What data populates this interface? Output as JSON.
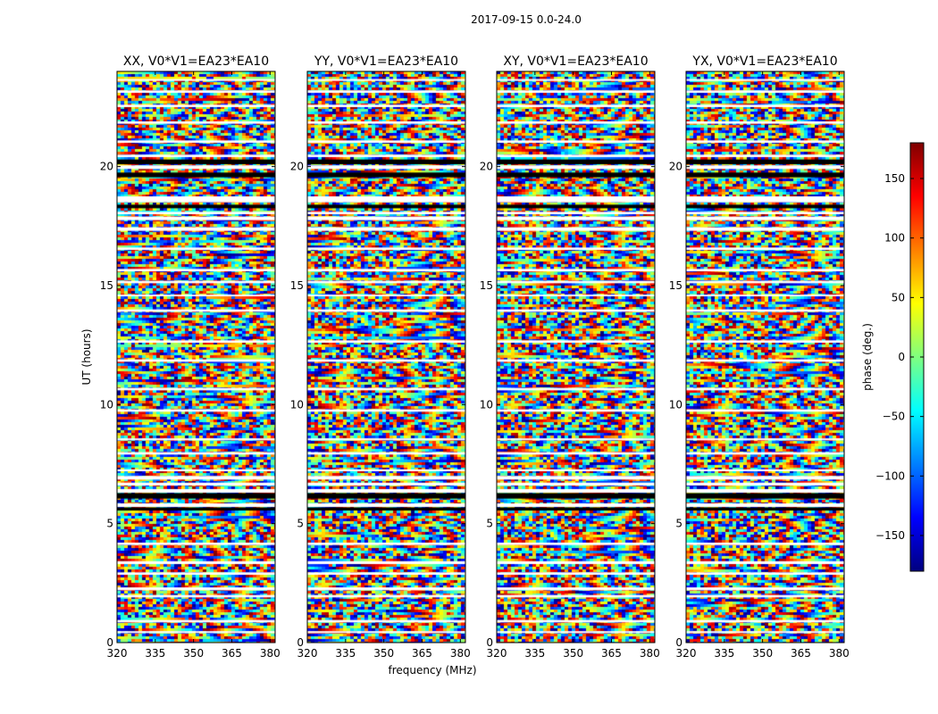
{
  "chart_data": {
    "type": "heatmap",
    "suptitle": "2017-09-15 0.0-24.0",
    "xlabel": "frequency (MHz)",
    "ylabel": "UT (hours)",
    "xlim": [
      320,
      382
    ],
    "ylim": [
      0,
      24
    ],
    "xticks": [
      320,
      335,
      350,
      365,
      380
    ],
    "yticks": [
      0,
      5,
      10,
      15,
      20
    ],
    "panels": [
      {
        "title": "XX, V0*V1=EA23*EA10"
      },
      {
        "title": "YY, V0*V1=EA23*EA10"
      },
      {
        "title": "XY, V0*V1=EA23*EA10"
      },
      {
        "title": "YX, V0*V1=EA23*EA10"
      }
    ],
    "colorbar": {
      "label": "phase (deg.)",
      "range": [
        -180,
        180
      ],
      "ticks": [
        150,
        100,
        50,
        0,
        -50,
        -100,
        -150
      ],
      "tick_labels": [
        "150",
        "100",
        "50",
        "0",
        "−50",
        "−100",
        "−150"
      ],
      "colormap": "jet"
    },
    "colors": {
      "jet": [
        "#00007f",
        "#0000ff",
        "#007fff",
        "#00ffff",
        "#7fff7f",
        "#ffff00",
        "#ff7f00",
        "#ff0000",
        "#7f0000"
      ],
      "flag": "#ffffff",
      "dark_band": "#000000"
    },
    "flagged_bands_hours": [
      [
        0.4,
        0.48
      ],
      [
        0.85,
        0.95
      ],
      [
        1.9,
        2.0
      ],
      [
        2.2,
        2.32
      ],
      [
        2.85,
        2.95
      ],
      [
        3.3,
        3.42
      ],
      [
        4.1,
        4.2
      ],
      [
        5.7,
        5.85
      ],
      [
        6.3,
        6.45
      ],
      [
        6.6,
        6.72
      ],
      [
        6.85,
        7.0
      ],
      [
        7.2,
        7.28
      ],
      [
        7.9,
        8.0
      ],
      [
        8.5,
        8.58
      ],
      [
        9.7,
        9.8
      ],
      [
        10.6,
        10.7
      ],
      [
        11.8,
        11.9
      ],
      [
        12.6,
        12.7
      ],
      [
        13.9,
        14.0
      ],
      [
        14.55,
        14.62
      ],
      [
        15.1,
        15.2
      ],
      [
        15.6,
        15.7
      ],
      [
        16.5,
        16.6
      ],
      [
        17.3,
        17.45
      ],
      [
        17.75,
        17.9
      ],
      [
        18.0,
        18.1
      ],
      [
        18.5,
        18.75
      ],
      [
        19.9,
        20.05
      ],
      [
        20.4,
        20.5
      ],
      [
        21.0,
        21.1
      ],
      [
        21.8,
        21.9
      ],
      [
        22.5,
        22.6
      ],
      [
        23.1,
        23.2
      ],
      [
        23.6,
        23.68
      ]
    ],
    "dark_bands_hours": [
      [
        5.55,
        5.68
      ],
      [
        6.05,
        6.28
      ],
      [
        18.25,
        18.4
      ],
      [
        19.55,
        19.75
      ],
      [
        20.1,
        20.3
      ]
    ]
  }
}
